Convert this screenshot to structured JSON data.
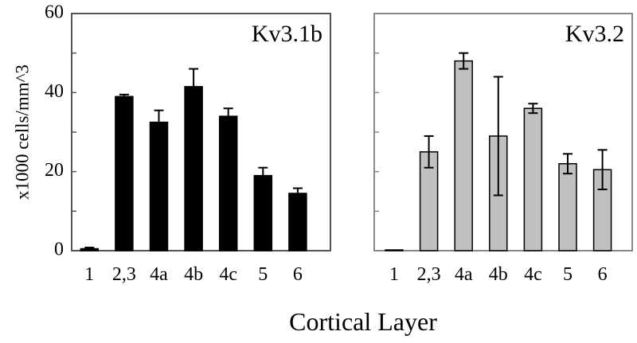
{
  "xlabel": "Cortical Layer",
  "chart_data": [
    {
      "type": "bar",
      "title": "Kv3.1b",
      "ylabel": "x1000 cells/mm^3",
      "ylim": [
        0,
        60
      ],
      "yticks": [
        "0",
        "20",
        "40",
        "60"
      ],
      "categories": [
        "1",
        "2,3",
        "4a",
        "4b",
        "4c",
        "5",
        "6"
      ],
      "values": [
        0.5,
        39,
        32.5,
        41.5,
        34,
        19,
        14.5
      ],
      "errors": [
        0.3,
        0.5,
        3,
        4.5,
        2,
        2,
        1.3
      ],
      "bar_color": "#000000"
    },
    {
      "type": "bar",
      "title": "Kv3.2",
      "ylim": [
        0,
        60
      ],
      "categories": [
        "1",
        "2,3",
        "4a",
        "4b",
        "4c",
        "5",
        "6"
      ],
      "values": [
        0.2,
        25,
        48,
        29,
        36,
        22,
        20.5
      ],
      "errors": [
        0.1,
        4,
        2,
        15,
        1.2,
        2.5,
        5
      ],
      "bar_color": "#c0c0c0"
    }
  ]
}
